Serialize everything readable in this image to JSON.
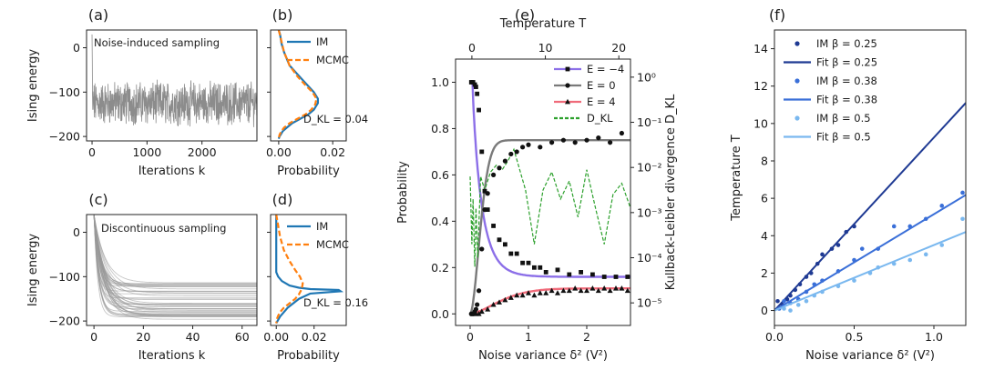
{
  "chart_data": [
    {
      "id": "a",
      "type": "line",
      "panel_label": "(a)",
      "annotation": "Noise-induced sampling",
      "xlabel": "Iterations k",
      "ylabel": "Ising energy",
      "xlim": [
        -100,
        3000
      ],
      "ylim": [
        -210,
        40
      ],
      "xticks": [
        "0",
        "1000",
        "2000"
      ],
      "yticks": [
        "0",
        "−100",
        "−200"
      ],
      "series": [
        {
          "color": "#8c8c8c",
          "mean": -125,
          "spread": 40,
          "length": 3000
        }
      ]
    },
    {
      "id": "b",
      "type": "line",
      "panel_label": "(b)",
      "xlabel": "Probability",
      "annotation": "D_KL = 0.04",
      "xlim": [
        -0.003,
        0.025
      ],
      "ylim": [
        -210,
        40
      ],
      "xticks": [
        "0.00",
        "0.02"
      ],
      "series": [
        {
          "name": "IM",
          "color": "#1f77b4",
          "x": [
            0,
            0.0005,
            0.001,
            0.002,
            0.004,
            0.007,
            0.01,
            0.013,
            0.0145,
            0.0145,
            0.013,
            0.011,
            0.008,
            0.005,
            0.003,
            0.0015,
            0.0008,
            0.0003,
            0
          ],
          "y": [
            40,
            30,
            10,
            -10,
            -40,
            -60,
            -80,
            -100,
            -115,
            -125,
            -140,
            -150,
            -160,
            -170,
            -180,
            -188,
            -195,
            -200,
            -205
          ]
        },
        {
          "name": "MCMC",
          "color": "#ff7f0e",
          "x": [
            0,
            0.0008,
            0.002,
            0.004,
            0.007,
            0.01,
            0.0125,
            0.014,
            0.0135,
            0.012,
            0.01,
            0.007,
            0.004,
            0.002,
            0.001,
            0.0003,
            0
          ],
          "y": [
            40,
            20,
            -10,
            -40,
            -65,
            -85,
            -100,
            -115,
            -128,
            -140,
            -150,
            -160,
            -170,
            -180,
            -188,
            -196,
            -205
          ]
        }
      ]
    },
    {
      "id": "c",
      "type": "line",
      "panel_label": "(c)",
      "annotation": "Discontinuous sampling",
      "xlabel": "Iterations k",
      "ylabel": "Ising energy",
      "xlim": [
        -3,
        66
      ],
      "ylim": [
        -210,
        40
      ],
      "xticks": [
        "0",
        "20",
        "40",
        "60"
      ],
      "yticks": [
        "0",
        "−100",
        "−200"
      ],
      "series": [
        {
          "color": "#999999",
          "start": 40,
          "plateaus_min": -200,
          "plateaus_max": -112,
          "count": 45
        }
      ]
    },
    {
      "id": "d",
      "type": "line",
      "panel_label": "(d)",
      "xlabel": "Probability",
      "annotation": "D_KL = 0.16",
      "xlim": [
        -0.003,
        0.037
      ],
      "ylim": [
        -210,
        40
      ],
      "xticks": [
        "0.00",
        "0.02"
      ],
      "series": [
        {
          "name": "IM",
          "color": "#1f77b4",
          "x": [
            0,
            0,
            0.001,
            0.003,
            0.007,
            0.012,
            0.018,
            0.033,
            0.034,
            0.018,
            0.012,
            0.006,
            0.002,
            0
          ],
          "y": [
            40,
            -90,
            -100,
            -110,
            -120,
            -125,
            -128,
            -130,
            -133,
            -138,
            -150,
            -170,
            -190,
            -205
          ]
        },
        {
          "name": "MCMC",
          "color": "#ff7f0e",
          "x": [
            0,
            0.0008,
            0.002,
            0.004,
            0.007,
            0.01,
            0.0125,
            0.014,
            0.0135,
            0.012,
            0.01,
            0.007,
            0.004,
            0.002,
            0.001,
            0.0003,
            0
          ],
          "y": [
            40,
            20,
            -10,
            -40,
            -65,
            -85,
            -100,
            -115,
            -128,
            -140,
            -150,
            -160,
            -170,
            -180,
            -188,
            -196,
            -205
          ]
        }
      ]
    },
    {
      "id": "e",
      "type": "line",
      "panel_label": "(e)",
      "xlabel": "Noise variance δ² (V²)",
      "ylabel": "Probability",
      "top_xlabel": "Temperature T",
      "right_ylabel": "Kullback-Leibler divergence D_KL",
      "xlim": [
        -0.25,
        2.75
      ],
      "ylim": [
        -0.05,
        1.1
      ],
      "xticks": [
        "0",
        "1",
        "2"
      ],
      "yticks": [
        "0.0",
        "0.2",
        "0.4",
        "0.6",
        "0.8",
        "1.0"
      ],
      "top_xticks": [
        "0",
        "10",
        "20"
      ],
      "right_yticks": [
        "10⁰",
        "10⁻¹",
        "10⁻²",
        "10⁻³",
        "10⁻⁴",
        "10⁻⁵"
      ],
      "series": [
        {
          "name": "E = −4",
          "marker": "square",
          "color": "#8c6fe8",
          "points_x": [
            0.02,
            0.05,
            0.08,
            0.1,
            0.12,
            0.15,
            0.2,
            0.25,
            0.3,
            0.4,
            0.5,
            0.6,
            0.7,
            0.8,
            0.9,
            1.0,
            1.1,
            1.2,
            1.3,
            1.5,
            1.7,
            1.9,
            2.1,
            2.3,
            2.5,
            2.7
          ],
          "points_y": [
            1.0,
            1.0,
            0.99,
            0.98,
            0.95,
            0.88,
            0.7,
            0.53,
            0.45,
            0.38,
            0.32,
            0.3,
            0.26,
            0.26,
            0.22,
            0.22,
            0.2,
            0.2,
            0.18,
            0.19,
            0.17,
            0.18,
            0.17,
            0.16,
            0.16,
            0.16
          ]
        },
        {
          "name": "E = 0",
          "marker": "circle",
          "color": "#7a7a7a",
          "points_x": [
            0.02,
            0.05,
            0.08,
            0.1,
            0.12,
            0.15,
            0.2,
            0.25,
            0.3,
            0.4,
            0.5,
            0.6,
            0.7,
            0.8,
            0.9,
            1.0,
            1.2,
            1.4,
            1.6,
            1.8,
            2.0,
            2.2,
            2.4,
            2.6
          ],
          "points_y": [
            0.0,
            0.0,
            0.01,
            0.02,
            0.04,
            0.1,
            0.28,
            0.45,
            0.52,
            0.6,
            0.63,
            0.66,
            0.69,
            0.7,
            0.72,
            0.73,
            0.72,
            0.74,
            0.75,
            0.74,
            0.75,
            0.76,
            0.74,
            0.78
          ]
        },
        {
          "name": "E = 4",
          "marker": "triangle",
          "color": "#f06b7a",
          "points_x": [
            0.05,
            0.1,
            0.15,
            0.2,
            0.3,
            0.4,
            0.5,
            0.6,
            0.7,
            0.8,
            0.9,
            1.0,
            1.1,
            1.2,
            1.3,
            1.4,
            1.5,
            1.6,
            1.7,
            1.8,
            1.9,
            2.0,
            2.1,
            2.2,
            2.3,
            2.4,
            2.5,
            2.6,
            2.7
          ],
          "points_y": [
            0.0,
            0.0,
            0.0,
            0.01,
            0.02,
            0.04,
            0.05,
            0.06,
            0.07,
            0.08,
            0.08,
            0.09,
            0.08,
            0.09,
            0.09,
            0.1,
            0.09,
            0.1,
            0.1,
            0.11,
            0.1,
            0.1,
            0.11,
            0.1,
            0.11,
            0.1,
            0.11,
            0.11,
            0.1
          ]
        },
        {
          "name": "D_KL",
          "style": "dashed",
          "color": "#2ca02c",
          "x": [
            0.0,
            0.03,
            0.05,
            0.08,
            0.1,
            0.13,
            0.18,
            0.25,
            0.35,
            0.45,
            0.55,
            0.65,
            0.75,
            0.85,
            0.95,
            1.1,
            1.25,
            1.4,
            1.55,
            1.7,
            1.85,
            2.0,
            2.15,
            2.3,
            2.45,
            2.6,
            2.75
          ],
          "y_log10": [
            -2.2,
            -3.7,
            -2.7,
            -4.2,
            -2.9,
            -4.0,
            -2.2,
            -2.5,
            -2.1,
            -1.95,
            -2.05,
            -1.85,
            -1.6,
            -2.05,
            -2.5,
            -3.7,
            -2.5,
            -2.1,
            -2.7,
            -2.3,
            -3.1,
            -2.05,
            -2.9,
            -3.7,
            -2.6,
            -2.35,
            -2.9
          ]
        }
      ]
    },
    {
      "id": "f",
      "type": "scatter",
      "panel_label": "(f)",
      "xlabel": "Noise variance δ² (V²)",
      "ylabel": "Temperature T",
      "xlim": [
        0,
        1.2
      ],
      "ylim": [
        -0.8,
        15
      ],
      "xticks": [
        "0.0",
        "0.5",
        "1.0"
      ],
      "yticks": [
        "0",
        "2",
        "4",
        "6",
        "8",
        "10",
        "12",
        "14"
      ],
      "series": [
        {
          "name": "IM β = 0.25",
          "kind": "points",
          "color": "#1f3a93",
          "x": [
            0.02,
            0.05,
            0.08,
            0.1,
            0.13,
            0.16,
            0.2,
            0.23,
            0.27,
            0.3,
            0.36,
            0.4,
            0.45,
            0.5
          ],
          "y": [
            0.5,
            0.3,
            0.6,
            0.8,
            1.1,
            1.4,
            1.8,
            2.0,
            2.5,
            3.0,
            3.3,
            3.5,
            4.2,
            4.5
          ]
        },
        {
          "name": "Fit β = 0.25",
          "kind": "line",
          "color": "#1f3a93",
          "slope": 9.25
        },
        {
          "name": "IM β = 0.38",
          "kind": "points",
          "color": "#3a6fd8",
          "x": [
            0.03,
            0.06,
            0.1,
            0.15,
            0.2,
            0.25,
            0.3,
            0.4,
            0.5,
            0.55,
            0.65,
            0.75,
            0.85,
            0.95,
            1.05,
            1.18
          ],
          "y": [
            0.1,
            0.5,
            0.4,
            0.6,
            1.0,
            1.4,
            1.6,
            2.1,
            2.7,
            3.3,
            3.3,
            4.5,
            4.5,
            4.9,
            5.6,
            6.3
          ]
        },
        {
          "name": "Fit β = 0.38",
          "kind": "line",
          "color": "#3a6fd8",
          "slope": 5.15
        },
        {
          "name": "IM β = 0.5",
          "kind": "points",
          "color": "#7ab8ef",
          "x": [
            0.06,
            0.1,
            0.15,
            0.2,
            0.25,
            0.3,
            0.4,
            0.5,
            0.6,
            0.65,
            0.75,
            0.85,
            0.95,
            1.05,
            1.18
          ],
          "y": [
            0.1,
            0.0,
            0.3,
            0.5,
            0.8,
            1.0,
            1.3,
            1.6,
            2.0,
            2.3,
            2.5,
            2.7,
            3.0,
            3.5,
            4.9
          ]
        },
        {
          "name": "Fit β = 0.5",
          "kind": "line",
          "color": "#7ab8ef",
          "slope": 3.5
        }
      ]
    }
  ]
}
